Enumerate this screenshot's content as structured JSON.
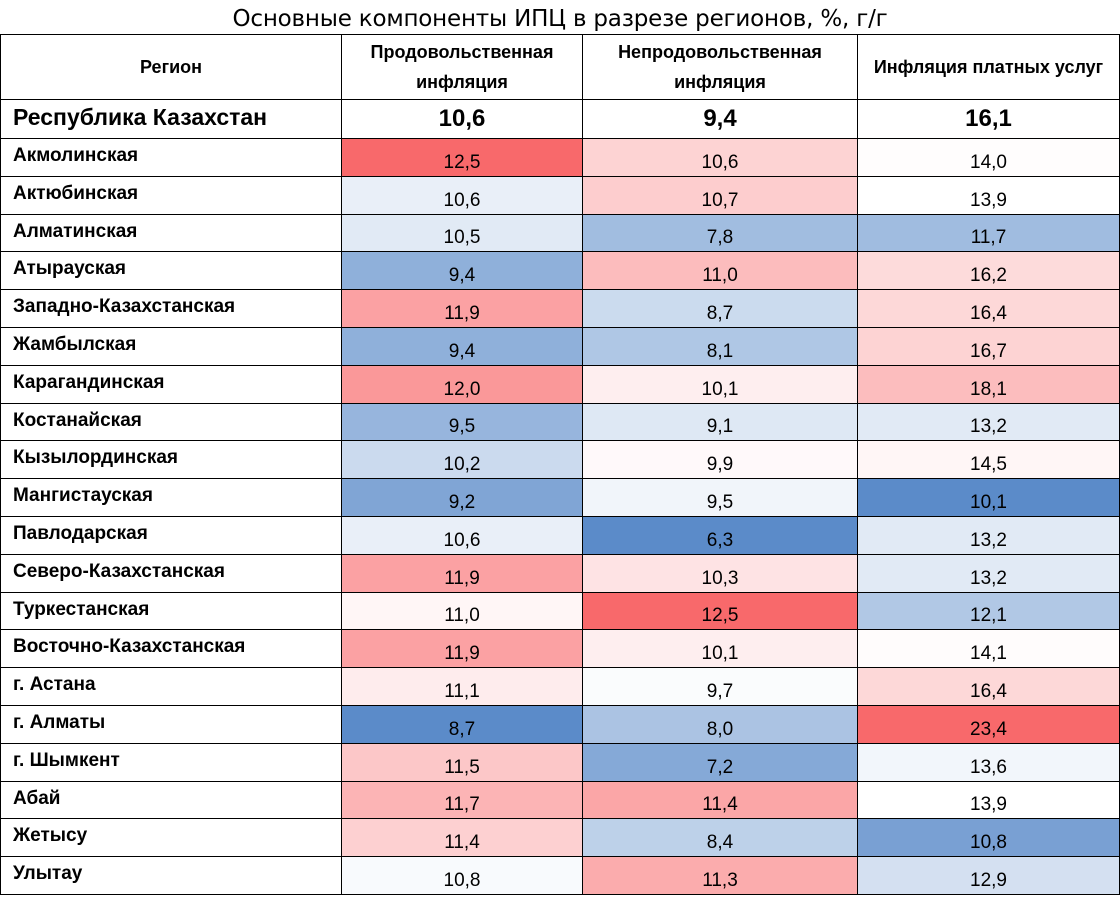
{
  "chart_data": {
    "type": "table",
    "title": "Основные компоненты ИПЦ в разрезе регионов, %, г/г",
    "columns": [
      "Регион",
      "Продовольственная инфляция",
      "Непродовольственная инфляция",
      "Инфляция платных услуг"
    ],
    "total": {
      "region": "Республика Казахстан",
      "values": [
        "10,6",
        "9,4",
        "16,1"
      ]
    },
    "rows": [
      {
        "region": "Акмолинская",
        "values": [
          "12,5",
          "10,6",
          "14,0"
        ]
      },
      {
        "region": "Актюбинская",
        "values": [
          "10,6",
          "10,7",
          "13,9"
        ]
      },
      {
        "region": "Алматинская",
        "values": [
          "10,5",
          "7,8",
          "11,7"
        ]
      },
      {
        "region": "Атырауская",
        "values": [
          "9,4",
          "11,0",
          "16,2"
        ]
      },
      {
        "region": "Западно-Казахстанская",
        "values": [
          "11,9",
          "8,7",
          "16,4"
        ]
      },
      {
        "region": "Жамбылская",
        "values": [
          "9,4",
          "8,1",
          "16,7"
        ]
      },
      {
        "region": "Карагандинская",
        "values": [
          "12,0",
          "10,1",
          "18,1"
        ]
      },
      {
        "region": "Костанайская",
        "values": [
          "9,5",
          "9,1",
          "13,2"
        ]
      },
      {
        "region": "Кызылординская",
        "values": [
          "10,2",
          "9,9",
          "14,5"
        ]
      },
      {
        "region": "Мангистауская",
        "values": [
          "9,2",
          "9,5",
          "10,1"
        ]
      },
      {
        "region": "Павлодарская",
        "values": [
          "10,6",
          "6,3",
          "13,2"
        ]
      },
      {
        "region": "Северо-Казахстанская",
        "values": [
          "11,9",
          "10,3",
          "13,2"
        ]
      },
      {
        "region": "Туркестанская",
        "values": [
          "11,0",
          "12,5",
          "12,1"
        ]
      },
      {
        "region": "Восточно-Казахстанская",
        "values": [
          "11,9",
          "10,1",
          "14,1"
        ]
      },
      {
        "region": "г. Астана",
        "values": [
          "11,1",
          "9,7",
          "16,4"
        ]
      },
      {
        "region": "г. Алматы",
        "values": [
          "8,7",
          "8,0",
          "23,4"
        ]
      },
      {
        "region": "г. Шымкент",
        "values": [
          "11,5",
          "7,2",
          "13,6"
        ]
      },
      {
        "region": "Абай",
        "values": [
          "11,7",
          "11,4",
          "13,9"
        ]
      },
      {
        "region": "Жетысу",
        "values": [
          "11,4",
          "8,4",
          "10,8"
        ]
      },
      {
        "region": "Улытау",
        "values": [
          "10,8",
          "11,3",
          "12,9"
        ]
      }
    ],
    "color_scale": {
      "low": "#5b8bc9",
      "mid": "#ffffff",
      "high": "#f8696b"
    }
  }
}
